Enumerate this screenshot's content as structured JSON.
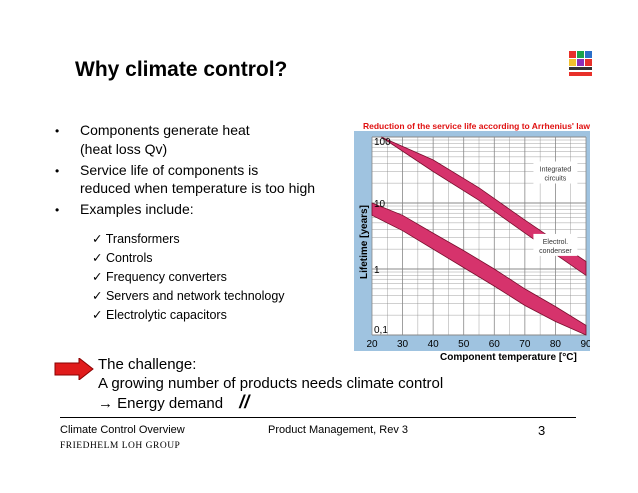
{
  "slide": {
    "title": "Why climate control?",
    "bullets": [
      {
        "marker": "•",
        "lines": [
          "Components generate heat",
          "(heat loss Qv)"
        ]
      },
      {
        "marker": "•",
        "lines": [
          "Service life of components is",
          "reduced when temperature is too high"
        ]
      },
      {
        "marker": "•",
        "lines": [
          "Examples include:"
        ]
      }
    ],
    "examples": [
      {
        "check": "✓",
        "label": "Transformers"
      },
      {
        "check": "✓",
        "label": "Controls"
      },
      {
        "check": "✓",
        "label": "Frequency converters"
      },
      {
        "check": "✓",
        "label": "Servers and network technology"
      },
      {
        "check": "✓",
        "label": "Electrolytic capacitors"
      }
    ],
    "challenge": {
      "line1": "The challenge:",
      "line2": "A growing number of products needs climate control",
      "arrow": "→",
      "line3": "Energy demand",
      "mark": "//"
    },
    "footer": {
      "left": "Climate Control Overview",
      "center": "Product Management, Rev 3",
      "page": "3",
      "company": "FRIEDHELM LOH GROUP"
    },
    "logo": {
      "name": "RITTAL",
      "accent": "#e8302a"
    }
  },
  "chart_data": {
    "type": "line",
    "title": "Reduction of the service life according to Arrhenius' law",
    "xlabel": "Component temperature [°C]",
    "ylabel": "Lifetime [years]",
    "yscale": "log",
    "xlim": [
      20,
      90
    ],
    "ylim": [
      0.1,
      100
    ],
    "x_ticks": [
      "20",
      "30",
      "40",
      "50",
      "60",
      "70",
      "80",
      "90"
    ],
    "y_ticks": [
      "100",
      "10",
      "1",
      "0,1"
    ],
    "grid": true,
    "band_color": "#d6336c",
    "panel_color": "#9fc3e0",
    "series": [
      {
        "name": "Integrated circuits",
        "x": [
          23,
          40,
          55,
          70,
          90
        ],
        "y_upper": [
          100,
          45,
          17,
          5.5,
          1.3
        ],
        "y_lower": [
          100,
          30,
          11,
          3.5,
          0.8
        ]
      },
      {
        "name": "Electrol. condenser",
        "x": [
          20,
          30,
          40,
          50,
          60,
          70,
          80,
          90
        ],
        "y_upper": [
          10,
          6.5,
          3.5,
          1.9,
          1.0,
          0.5,
          0.27,
          0.14
        ],
        "y_lower": [
          6.5,
          3.8,
          2.0,
          1.05,
          0.55,
          0.28,
          0.16,
          0.1
        ]
      }
    ],
    "annotations": [
      {
        "text": [
          "Integrated",
          "circuits"
        ]
      },
      {
        "text": [
          "Electrol.",
          "condenser"
        ]
      }
    ]
  }
}
